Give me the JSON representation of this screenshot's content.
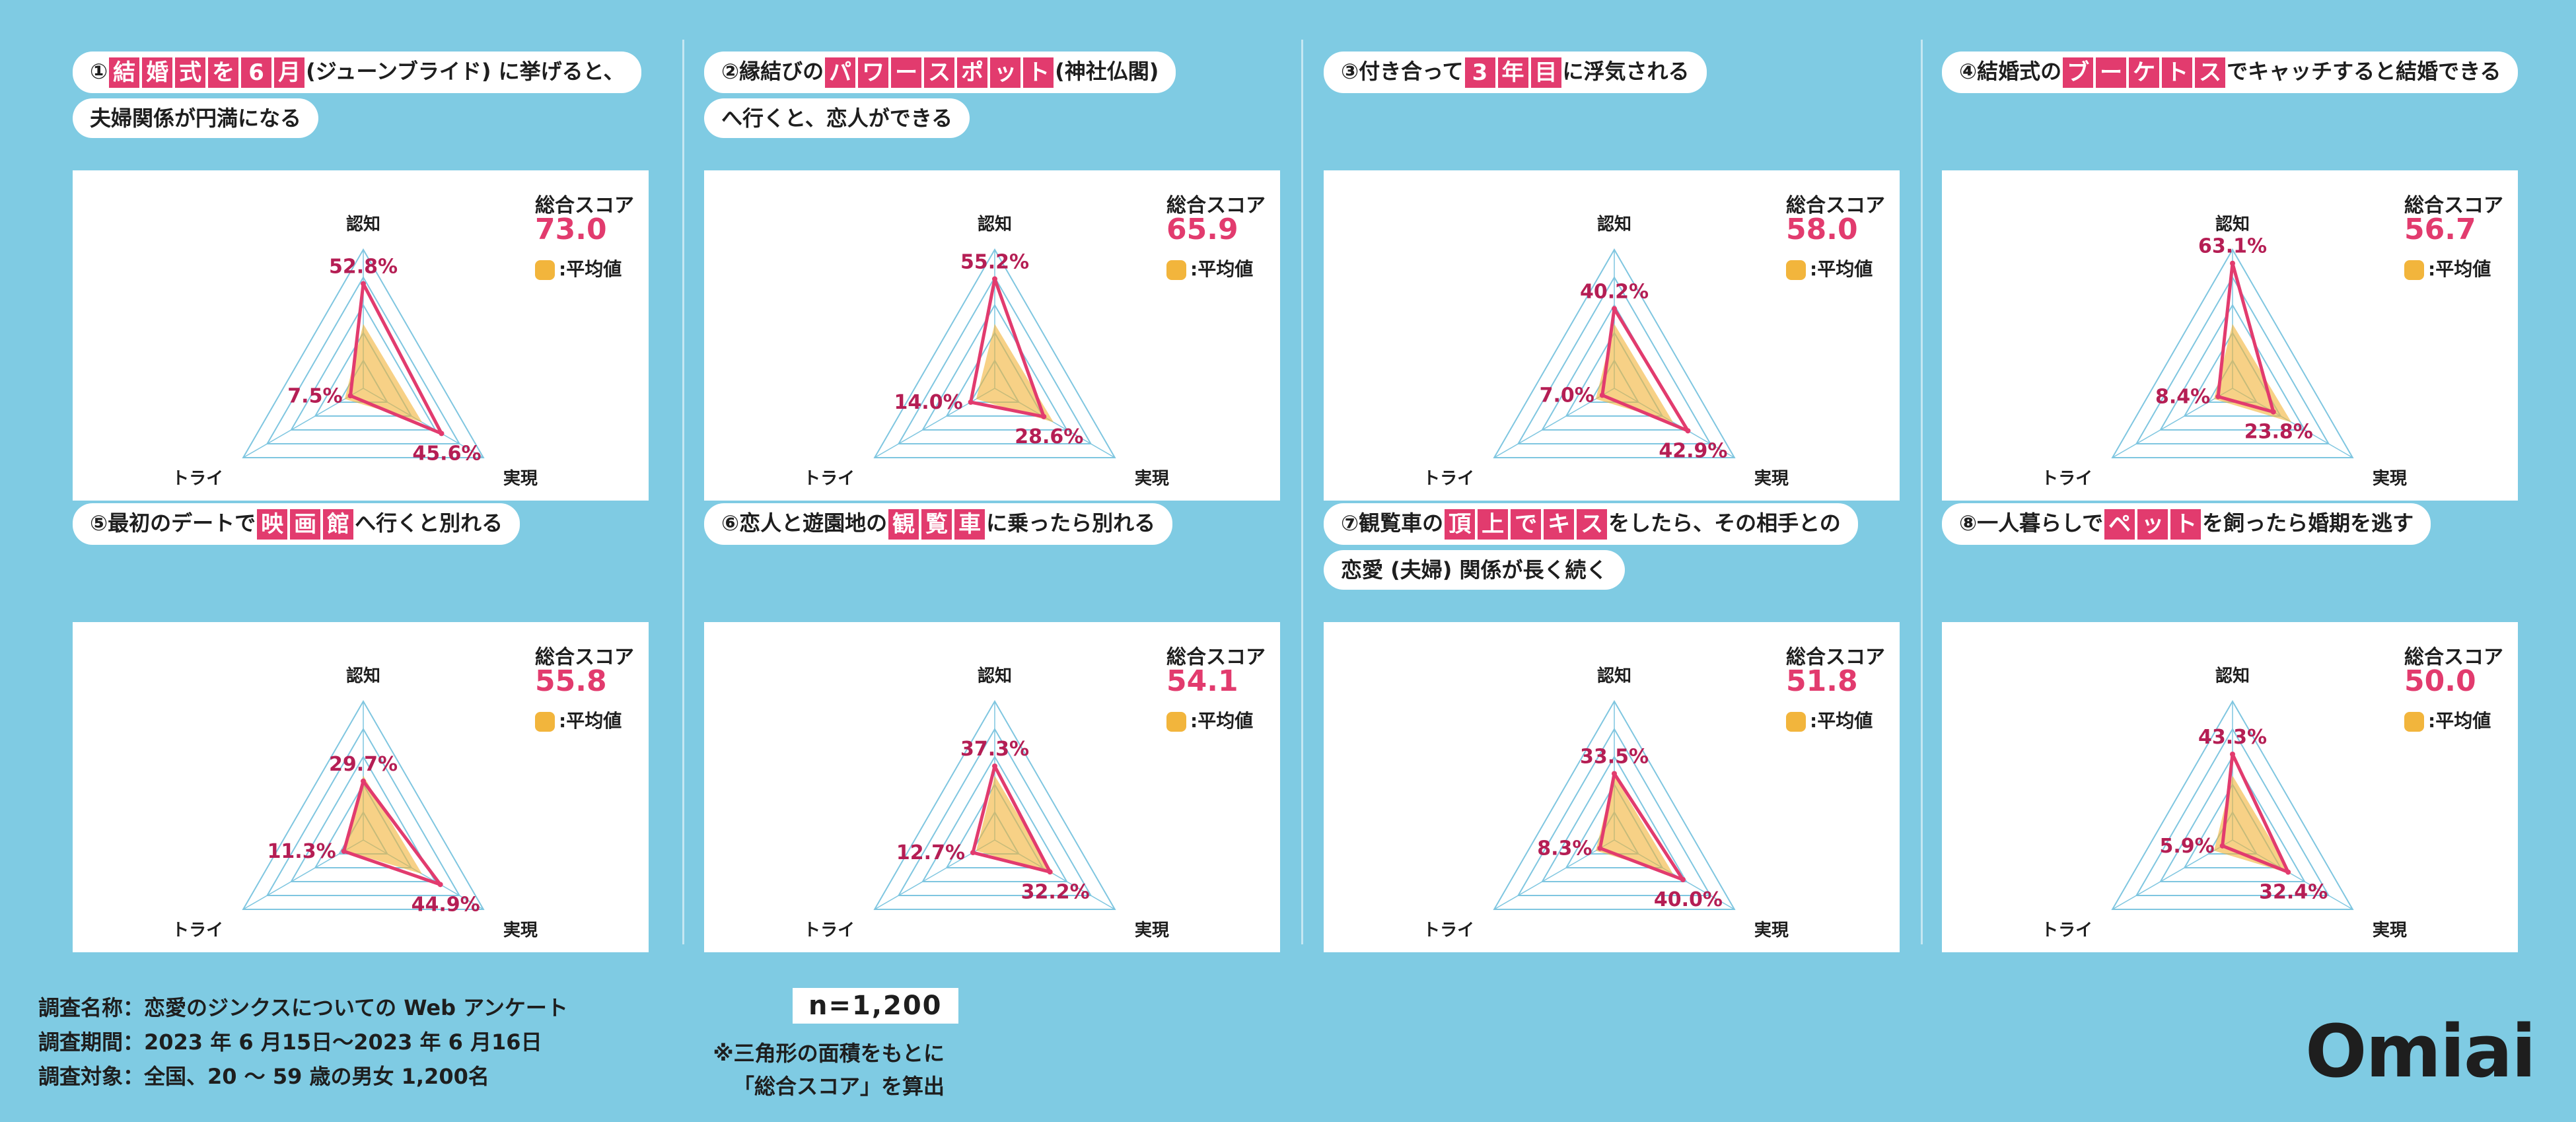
{
  "colors": {
    "background": "#7fcbe3",
    "accent": "#e23b6e",
    "average_fill": "#f2b53c",
    "grid": "#7fc6e0",
    "label": "#1e1e1e"
  },
  "common": {
    "score_label": "総合スコア",
    "legend_label": ":平均値",
    "axis": [
      "認知",
      "実現",
      "トライ"
    ]
  },
  "panels": [
    {
      "lines": [
        [
          {
            "t": "①"
          },
          {
            "h": "結"
          },
          {
            "h": "婚"
          },
          {
            "h": "式"
          },
          {
            "h": "を"
          },
          {
            "h": "6"
          },
          {
            "h": "月"
          },
          {
            "t": "(ジューンブライド) に挙げると、"
          }
        ],
        [
          {
            "t": "夫婦関係が円満になる"
          }
        ]
      ],
      "score": "73.0",
      "values_label": [
        "52.8%",
        "45.6%",
        "7.5%"
      ]
    },
    {
      "lines": [
        [
          {
            "t": "②縁結びの"
          },
          {
            "h": "パ"
          },
          {
            "h": "ワ"
          },
          {
            "h": "ー"
          },
          {
            "h": "ス"
          },
          {
            "h": "ポ"
          },
          {
            "h": "ッ"
          },
          {
            "h": "ト"
          },
          {
            "t": "(神社仏閣)"
          }
        ],
        [
          {
            "t": "へ行くと、恋人ができる"
          }
        ]
      ],
      "score": "65.9",
      "values_label": [
        "55.2%",
        "28.6%",
        "14.0%"
      ]
    },
    {
      "lines": [
        [
          {
            "t": "③付き合って"
          },
          {
            "h": "3"
          },
          {
            "h": "年"
          },
          {
            "h": "目"
          },
          {
            "t": "に浮気される"
          }
        ]
      ],
      "score": "58.0",
      "values_label": [
        "40.2%",
        "42.9%",
        "7.0%"
      ]
    },
    {
      "lines": [
        [
          {
            "t": "④結婚式の"
          },
          {
            "h": "ブ"
          },
          {
            "h": "ー"
          },
          {
            "h": "ケ"
          },
          {
            "h": "ト"
          },
          {
            "h": "ス"
          },
          {
            "t": "でキャッチすると結婚できる"
          }
        ]
      ],
      "score": "56.7",
      "values_label": [
        "63.1%",
        "23.8%",
        "8.4%"
      ]
    },
    {
      "lines": [
        [
          {
            "t": "⑤最初のデートで"
          },
          {
            "h": "映"
          },
          {
            "h": "画"
          },
          {
            "h": "館"
          },
          {
            "t": "へ行くと別れる"
          }
        ]
      ],
      "score": "55.8",
      "values_label": [
        "29.7%",
        "44.9%",
        "11.3%"
      ]
    },
    {
      "lines": [
        [
          {
            "t": "⑥恋人と遊園地の"
          },
          {
            "h": "観"
          },
          {
            "h": "覧"
          },
          {
            "h": "車"
          },
          {
            "t": "に乗ったら別れる"
          }
        ]
      ],
      "score": "54.1",
      "values_label": [
        "37.3%",
        "32.2%",
        "12.7%"
      ]
    },
    {
      "lines": [
        [
          {
            "t": "⑦観覧車の"
          },
          {
            "h": "頂"
          },
          {
            "h": "上"
          },
          {
            "h": "で"
          },
          {
            "h": "キ"
          },
          {
            "h": "ス"
          },
          {
            "t": "をしたら、その相手との"
          }
        ],
        [
          {
            "t": "恋愛 (夫婦) 関係が長く続く"
          }
        ]
      ],
      "score": "51.8",
      "values_label": [
        "33.5%",
        "40.0%",
        "8.3%"
      ]
    },
    {
      "lines": [
        [
          {
            "t": "⑧一人暮らしで"
          },
          {
            "h": "ペ"
          },
          {
            "h": "ッ"
          },
          {
            "h": "ト"
          },
          {
            "t": "を飼ったら婚期を逃す"
          }
        ]
      ],
      "score": "50.0",
      "values_label": [
        "43.3%",
        "32.4%",
        "5.9%"
      ]
    }
  ],
  "chart_data": [
    {
      "type": "radar",
      "axes": [
        "認知",
        "実現",
        "トライ"
      ],
      "series": [
        {
          "name": "",
          "values": [
            52.8,
            45.6,
            7.5
          ]
        }
      ],
      "average": [
        32.5,
        34.3,
        10.8
      ],
      "range": [
        0,
        70
      ]
    },
    {
      "type": "radar",
      "axes": [
        "認知",
        "実現",
        "トライ"
      ],
      "series": [
        {
          "name": "",
          "values": [
            55.2,
            28.6,
            14.0
          ]
        }
      ],
      "average": [
        32.5,
        34.3,
        10.8
      ],
      "range": [
        0,
        70
      ]
    },
    {
      "type": "radar",
      "axes": [
        "認知",
        "実現",
        "トライ"
      ],
      "series": [
        {
          "name": "",
          "values": [
            40.2,
            42.9,
            7.0
          ]
        }
      ],
      "average": [
        32.5,
        34.3,
        10.8
      ],
      "range": [
        0,
        70
      ]
    },
    {
      "type": "radar",
      "axes": [
        "認知",
        "実現",
        "トライ"
      ],
      "series": [
        {
          "name": "",
          "values": [
            63.1,
            23.8,
            8.4
          ]
        }
      ],
      "average": [
        32.5,
        34.3,
        10.8
      ],
      "range": [
        0,
        70
      ]
    },
    {
      "type": "radar",
      "axes": [
        "認知",
        "実現",
        "トライ"
      ],
      "series": [
        {
          "name": "",
          "values": [
            29.7,
            44.9,
            11.3
          ]
        }
      ],
      "average": [
        32.5,
        34.3,
        10.8
      ],
      "range": [
        0,
        70
      ]
    },
    {
      "type": "radar",
      "axes": [
        "認知",
        "実現",
        "トライ"
      ],
      "series": [
        {
          "name": "",
          "values": [
            37.3,
            32.2,
            12.7
          ]
        }
      ],
      "average": [
        32.5,
        34.3,
        10.8
      ],
      "range": [
        0,
        70
      ]
    },
    {
      "type": "radar",
      "axes": [
        "認知",
        "実現",
        "トライ"
      ],
      "series": [
        {
          "name": "",
          "values": [
            33.5,
            40.0,
            8.3
          ]
        }
      ],
      "average": [
        32.5,
        34.3,
        10.8
      ],
      "range": [
        0,
        70
      ]
    },
    {
      "type": "radar",
      "axes": [
        "認知",
        "実現",
        "トライ"
      ],
      "series": [
        {
          "name": "",
          "values": [
            43.3,
            32.4,
            5.9
          ]
        }
      ],
      "average": [
        32.5,
        34.3,
        10.8
      ],
      "range": [
        0,
        70
      ]
    }
  ],
  "footer": {
    "survey_name": "調査名称：恋愛のジンクスについての Web アンケート",
    "survey_period": "調査期間：2023 年 6 月15日〜2023 年 6 月16日",
    "survey_target": "調査対象：全国、20 〜 59 歳の男女 1,200名",
    "n": "n=1,200",
    "note_1": "※三角形の面積をもとに",
    "note_2": "「総合スコア」を算出",
    "brand": "Omiai"
  }
}
